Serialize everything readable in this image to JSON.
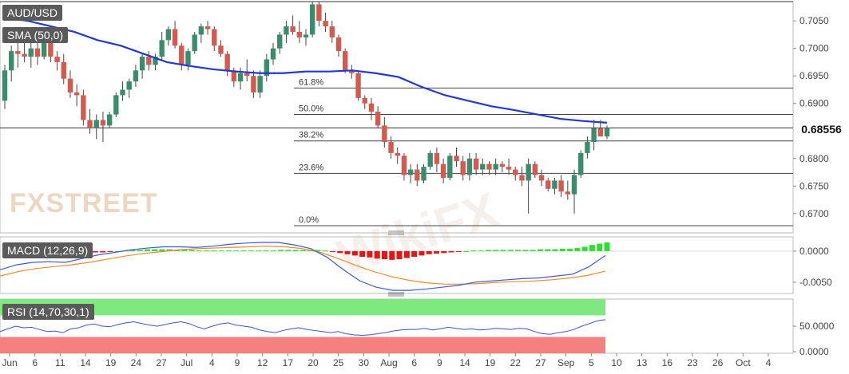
{
  "symbol": "AUD/USD",
  "sma_label": "SMA (50,0)",
  "macd_label": "MACD (12,26,9)",
  "rsi_label": "RSI (14,70,30,1)",
  "last_price": "0.68556",
  "watermark_a": "FX",
  "watermark_b": "STREET",
  "watermark_c": "WikiFX",
  "colors": {
    "up": "#3b8c6c",
    "down": "#d35a50",
    "sma": "#2336d8",
    "macd": "#3a5bd8",
    "signal": "#f08a2a",
    "hist_up": "#2ee02e",
    "hist_down": "#e31515",
    "rsi": "#3a55c8",
    "rsi_ob": "#7fe87f",
    "rsi_os": "#f58080"
  },
  "chart_data": [
    {
      "type": "candlestick",
      "title": "AUD/USD",
      "ylim": [
        0.6665,
        0.7085
      ],
      "y_ticks": [
        "0.7050",
        "0.7000",
        "0.6950",
        "0.6900",
        "0.6800",
        "0.6750",
        "0.6700"
      ],
      "x_ticks": [
        "Jun",
        "6",
        "11",
        "14",
        "19",
        "24",
        "27",
        "Jul",
        "4",
        "9",
        "12",
        "17",
        "20",
        "25",
        "30",
        "Aug",
        "6",
        "9",
        "14",
        "19",
        "22",
        "27",
        "Sep",
        "5",
        "10",
        "13",
        "16",
        "23",
        "26",
        "Oct",
        "4"
      ],
      "candles": [
        [
          0.6905,
          0.697,
          0.689,
          0.696
        ],
        [
          0.696,
          0.7005,
          0.694,
          0.6995
        ],
        [
          0.6995,
          0.7025,
          0.6965,
          0.699
        ],
        [
          0.699,
          0.701,
          0.6975,
          0.6985
        ],
        [
          0.6985,
          0.701,
          0.6965,
          0.7
        ],
        [
          0.7,
          0.701,
          0.697,
          0.6985
        ],
        [
          0.6985,
          0.703,
          0.698,
          0.702
        ],
        [
          0.702,
          0.703,
          0.6975,
          0.6985
        ],
        [
          0.6985,
          0.6995,
          0.696,
          0.6975
        ],
        [
          0.6975,
          0.699,
          0.6935,
          0.6945
        ],
        [
          0.6945,
          0.696,
          0.691,
          0.692
        ],
        [
          0.692,
          0.6935,
          0.6895,
          0.6915
        ],
        [
          0.6915,
          0.6925,
          0.686,
          0.687
        ],
        [
          0.687,
          0.689,
          0.6845,
          0.6855
        ],
        [
          0.6855,
          0.688,
          0.6835,
          0.687
        ],
        [
          0.687,
          0.6885,
          0.683,
          0.686
        ],
        [
          0.686,
          0.6885,
          0.6855,
          0.688
        ],
        [
          0.688,
          0.692,
          0.6875,
          0.6915
        ],
        [
          0.6915,
          0.694,
          0.6905,
          0.6925
        ],
        [
          0.6925,
          0.6945,
          0.691,
          0.694
        ],
        [
          0.694,
          0.697,
          0.693,
          0.696
        ],
        [
          0.696,
          0.699,
          0.6945,
          0.6985
        ],
        [
          0.6985,
          0.6995,
          0.696,
          0.697
        ],
        [
          0.697,
          0.699,
          0.696,
          0.6985
        ],
        [
          0.6985,
          0.703,
          0.698,
          0.7015
        ],
        [
          0.7015,
          0.704,
          0.7005,
          0.7035
        ],
        [
          0.7035,
          0.705,
          0.7,
          0.7005
        ],
        [
          0.7005,
          0.701,
          0.696,
          0.697
        ],
        [
          0.697,
          0.7,
          0.696,
          0.6995
        ],
        [
          0.6995,
          0.703,
          0.699,
          0.7025
        ],
        [
          0.7025,
          0.7045,
          0.701,
          0.704
        ],
        [
          0.704,
          0.705,
          0.7025,
          0.7035
        ],
        [
          0.7035,
          0.704,
          0.6995,
          0.7005
        ],
        [
          0.7005,
          0.7015,
          0.6985,
          0.699
        ],
        [
          0.699,
          0.6995,
          0.695,
          0.696
        ],
        [
          0.696,
          0.6965,
          0.693,
          0.694
        ],
        [
          0.694,
          0.6965,
          0.6925,
          0.6955
        ],
        [
          0.6955,
          0.698,
          0.694,
          0.695
        ],
        [
          0.695,
          0.696,
          0.691,
          0.692
        ],
        [
          0.692,
          0.696,
          0.691,
          0.695
        ],
        [
          0.695,
          0.699,
          0.694,
          0.698
        ],
        [
          0.698,
          0.701,
          0.697,
          0.7
        ],
        [
          0.7,
          0.703,
          0.699,
          0.7025
        ],
        [
          0.7025,
          0.705,
          0.701,
          0.704
        ],
        [
          0.704,
          0.706,
          0.7025,
          0.703
        ],
        [
          0.703,
          0.705,
          0.701,
          0.702
        ],
        [
          0.702,
          0.7035,
          0.7005,
          0.7025
        ],
        [
          0.7025,
          0.7085,
          0.702,
          0.708
        ],
        [
          0.708,
          0.7085,
          0.704,
          0.705
        ],
        [
          0.705,
          0.7065,
          0.703,
          0.704
        ],
        [
          0.704,
          0.705,
          0.701,
          0.702
        ],
        [
          0.702,
          0.7025,
          0.6985,
          0.6995
        ],
        [
          0.6995,
          0.7,
          0.6955,
          0.696
        ],
        [
          0.696,
          0.697,
          0.6945,
          0.6955
        ],
        [
          0.6955,
          0.696,
          0.6905,
          0.691
        ],
        [
          0.691,
          0.6915,
          0.689,
          0.69
        ],
        [
          0.69,
          0.691,
          0.687,
          0.6885
        ],
        [
          0.6885,
          0.6895,
          0.6855,
          0.686
        ],
        [
          0.686,
          0.6875,
          0.682,
          0.683
        ],
        [
          0.683,
          0.684,
          0.68,
          0.681
        ],
        [
          0.681,
          0.682,
          0.679,
          0.6805
        ],
        [
          0.6805,
          0.681,
          0.676,
          0.677
        ],
        [
          0.677,
          0.679,
          0.6755,
          0.678
        ],
        [
          0.678,
          0.679,
          0.675,
          0.676
        ],
        [
          0.676,
          0.679,
          0.6755,
          0.6785
        ],
        [
          0.6785,
          0.6815,
          0.678,
          0.681
        ],
        [
          0.681,
          0.682,
          0.6775,
          0.679
        ],
        [
          0.679,
          0.68,
          0.6755,
          0.6765
        ],
        [
          0.6765,
          0.681,
          0.676,
          0.6805
        ],
        [
          0.6805,
          0.682,
          0.6785,
          0.6795
        ],
        [
          0.6795,
          0.6805,
          0.676,
          0.677
        ],
        [
          0.677,
          0.681,
          0.676,
          0.68
        ],
        [
          0.68,
          0.681,
          0.677,
          0.678
        ],
        [
          0.678,
          0.68,
          0.677,
          0.679
        ],
        [
          0.679,
          0.6795,
          0.677,
          0.678
        ],
        [
          0.678,
          0.68,
          0.677,
          0.679
        ],
        [
          0.679,
          0.6795,
          0.6775,
          0.6785
        ],
        [
          0.6785,
          0.68,
          0.677,
          0.678
        ],
        [
          0.678,
          0.6785,
          0.676,
          0.677
        ],
        [
          0.677,
          0.6785,
          0.675,
          0.676
        ],
        [
          0.676,
          0.68,
          0.67,
          0.679
        ],
        [
          0.679,
          0.6795,
          0.6765,
          0.677
        ],
        [
          0.677,
          0.678,
          0.675,
          0.676
        ],
        [
          0.676,
          0.6765,
          0.674,
          0.6745
        ],
        [
          0.6745,
          0.6765,
          0.6735,
          0.676
        ],
        [
          0.676,
          0.677,
          0.673,
          0.674
        ],
        [
          0.674,
          0.676,
          0.6725,
          0.6735
        ],
        [
          0.6735,
          0.678,
          0.67,
          0.677
        ],
        [
          0.677,
          0.6815,
          0.6765,
          0.681
        ],
        [
          0.681,
          0.684,
          0.68,
          0.683
        ],
        [
          0.683,
          0.687,
          0.6815,
          0.6855
        ],
        [
          0.6855,
          0.687,
          0.684,
          0.684
        ],
        [
          0.684,
          0.686,
          0.6835,
          0.68556
        ]
      ],
      "sma50": [
        0.7055,
        0.705,
        0.704,
        0.703,
        0.7015,
        0.7005,
        0.699,
        0.6975,
        0.6968,
        0.6962,
        0.6958,
        0.6955,
        0.6955,
        0.6958,
        0.6958,
        0.696,
        0.6955,
        0.6948,
        0.693,
        0.6915,
        0.6905,
        0.6895,
        0.6888,
        0.688,
        0.6872,
        0.6868,
        0.6865
      ],
      "fibonacci": [
        {
          "label": "61.8%",
          "value": 0.6928
        },
        {
          "label": "50.0%",
          "value": 0.688
        },
        {
          "label": "38.2%",
          "value": 0.6832
        },
        {
          "label": "23.6%",
          "value": 0.6773
        },
        {
          "label": "0.0%",
          "value": 0.6678
        }
      ],
      "ref_level": 0.68556
    },
    {
      "type": "macd",
      "title": "MACD (12,26,9)",
      "ylim": [
        -0.0068,
        0.0023
      ],
      "y_ticks": [
        "0.0000",
        "-0.0050"
      ],
      "histogram": [
        0.0001,
        0.0002,
        0.0003,
        0.0003,
        0.0004,
        0.0004,
        0.0003,
        0.0002,
        0.0001,
        0.0,
        -0.0001,
        -0.0002,
        -0.0002,
        -0.0002,
        -0.0001,
        0.0,
        0.0001,
        0.0002,
        0.0002,
        0.0003,
        0.0003,
        0.0003,
        0.0003,
        0.0002,
        0.0002,
        0.0002,
        0.0001,
        0.0001,
        0.0001,
        0.0001,
        0.0001,
        0.0001,
        0.0001,
        0.0001,
        0.0001,
        0.0001,
        0.0001,
        0.0002,
        0.0002,
        0.0002,
        0.0002,
        0.0002,
        0.0002,
        0.0001,
        -0.0001,
        -0.0003,
        -0.0005,
        -0.0007,
        -0.0009,
        -0.001,
        -0.0012,
        -0.0013,
        -0.0014,
        -0.0013,
        -0.0011,
        -0.0009,
        -0.0007,
        -0.0005,
        -0.0004,
        -0.0003,
        -0.0002,
        -0.0001,
        0.0,
        0.0001,
        0.0001,
        0.0002,
        0.0002,
        0.0002,
        0.0002,
        0.0002,
        0.0002,
        0.0002,
        0.0003,
        0.0003,
        0.0003,
        0.0004,
        0.0004,
        0.0005,
        0.0007,
        0.001,
        0.0012,
        0.0014
      ],
      "macd": [
        -0.003,
        -0.0022,
        -0.0018,
        -0.0017,
        -0.0018,
        -0.0012,
        -0.0006,
        -0.0002,
        0.0002,
        0.0005,
        0.0007,
        0.0007,
        0.0006,
        0.0008,
        0.0011,
        0.0013,
        0.0014,
        0.0014,
        0.001,
        0.0004,
        -0.001,
        -0.003,
        -0.0048,
        -0.0058,
        -0.0063,
        -0.0063,
        -0.0061,
        -0.0058,
        -0.0055,
        -0.005,
        -0.0048,
        -0.0046,
        -0.0044,
        -0.0043,
        -0.004,
        -0.0037,
        -0.0025,
        -0.0007
      ],
      "signal": [
        -0.004,
        -0.0033,
        -0.0028,
        -0.0025,
        -0.0022,
        -0.0018,
        -0.0013,
        -0.0008,
        -0.0004,
        -0.0001,
        0.0002,
        0.0004,
        0.0005,
        0.0006,
        0.0007,
        0.0008,
        0.0007,
        0.0004,
        -0.0002,
        -0.0012,
        -0.0023,
        -0.0033,
        -0.0041,
        -0.0047,
        -0.0051,
        -0.0053,
        -0.0053,
        -0.0052,
        -0.005,
        -0.0049,
        -0.0048,
        -0.0046,
        -0.0043,
        -0.0039,
        -0.0032
      ]
    },
    {
      "type": "line",
      "title": "RSI (14,70,30,1)",
      "ylim": [
        0,
        100
      ],
      "y_ticks": [
        "50.0000",
        "0.0000"
      ],
      "overbought": 70,
      "oversold": 30,
      "values": [
        40,
        45,
        50,
        47,
        48,
        44,
        40,
        41,
        38,
        45,
        47,
        52,
        54,
        50,
        49,
        53,
        56,
        58,
        55,
        52,
        50,
        53,
        56,
        58,
        55,
        49,
        45,
        50,
        54,
        56,
        52,
        50,
        48,
        43,
        40,
        38,
        42,
        45,
        47,
        44,
        42,
        40,
        38,
        40,
        36,
        34,
        33,
        34,
        36,
        38,
        41,
        43,
        44,
        44,
        46,
        43,
        45,
        48,
        46,
        44,
        45,
        43,
        44,
        46,
        45,
        44,
        46,
        45,
        40,
        36,
        35,
        38,
        40,
        44,
        50,
        55,
        60,
        62
      ]
    }
  ]
}
